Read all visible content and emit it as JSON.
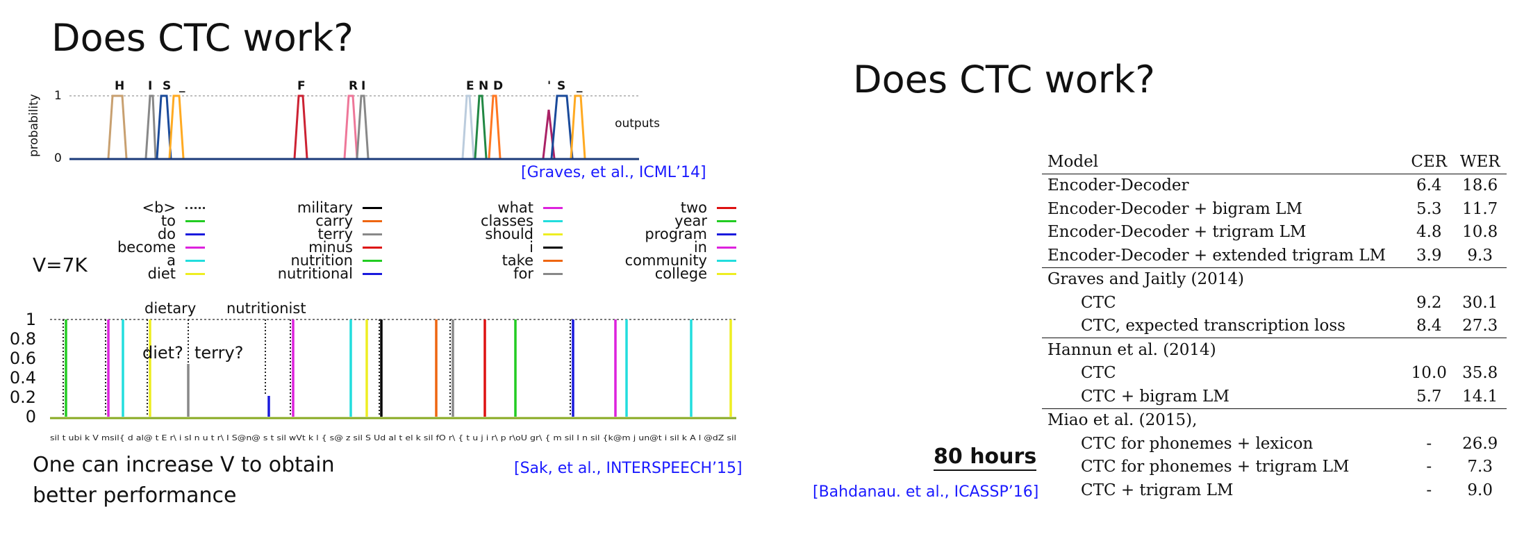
{
  "left": {
    "title": "Does CTC work?",
    "top_chart": {
      "y_axis_label": "probability",
      "y_ticks": [
        "1",
        "0"
      ],
      "outputs_label": "outputs",
      "letters": [
        "H",
        "I",
        "S",
        "_",
        "F",
        "R",
        "I",
        "E",
        "N",
        "D",
        "'",
        "S",
        "_"
      ],
      "citation": "[Graves, et al., ICML’14]"
    },
    "legend_columns": [
      [
        {
          "label": "<b>",
          "color": "#444444",
          "dotted": true
        },
        {
          "label": "to",
          "color": "#22cc22"
        },
        {
          "label": "do",
          "color": "#1a1add"
        },
        {
          "label": "become",
          "color": "#dd22dd"
        },
        {
          "label": "a",
          "color": "#22dddd"
        },
        {
          "label": "diet",
          "color": "#eeee22"
        }
      ],
      [
        {
          "label": "military",
          "color": "#000000"
        },
        {
          "label": "carry",
          "color": "#ee6611"
        },
        {
          "label": "terry",
          "color": "#888888"
        },
        {
          "label": "minus",
          "color": "#dd1111"
        },
        {
          "label": "nutrition",
          "color": "#22cc22"
        },
        {
          "label": "nutritional",
          "color": "#1a1add"
        }
      ],
      [
        {
          "label": "what",
          "color": "#dd22dd"
        },
        {
          "label": "classes",
          "color": "#22dddd"
        },
        {
          "label": "should",
          "color": "#eeee22"
        },
        {
          "label": "i",
          "color": "#000000"
        },
        {
          "label": "take",
          "color": "#ee6611"
        },
        {
          "label": "for",
          "color": "#888888"
        }
      ],
      [
        {
          "label": "two",
          "color": "#dd1111"
        },
        {
          "label": "year",
          "color": "#22cc22"
        },
        {
          "label": "program",
          "color": "#1a1add"
        },
        {
          "label": "in",
          "color": "#dd22dd"
        },
        {
          "label": "community",
          "color": "#22dddd"
        },
        {
          "label": "college",
          "color": "#eeee22"
        }
      ]
    ],
    "vocab_label": "V=7K",
    "bottom_chart": {
      "annotations": [
        "dietary",
        "nutritionist",
        "diet?",
        "terry?"
      ],
      "y_ticks": [
        "1",
        "0.8",
        "0.6",
        "0.4",
        "0.2",
        "0"
      ],
      "phoneme_string": "sil t ubi k V msil{ d al@ t E r\\ i sI n u t r\\ I S@n@ s t sil wVt k l { s@ z sil S Ud al t el k sil fO r\\ { t u j i r\\ p r\\oU gr\\ { m sil I n sil {k@m j un@t i sil k A l @dZ sil",
      "citation": "[Sak, et al., INTERSPEECH’15]"
    },
    "note_line1": "One can increase V to obtain",
    "note_line2": "better performance"
  },
  "right": {
    "title": "Does CTC work?",
    "hours_label": "80 hours",
    "citation": "[Bahdanau. et al., ICASSP’16]",
    "table": {
      "headers": [
        "Model",
        "CER",
        "WER"
      ],
      "rows": [
        {
          "model": "Encoder-Decoder",
          "cer": "6.4",
          "wer": "18.6",
          "indent": false,
          "group_start": false
        },
        {
          "model": "Encoder-Decoder + bigram LM",
          "cer": "5.3",
          "wer": "11.7",
          "indent": false,
          "group_start": false
        },
        {
          "model": "Encoder-Decoder + trigram LM",
          "cer": "4.8",
          "wer": "10.8",
          "indent": false,
          "group_start": false
        },
        {
          "model": "Encoder-Decoder + extended trigram LM",
          "cer": "3.9",
          "wer": "9.3",
          "indent": false,
          "group_start": false
        },
        {
          "model": "Graves and Jaitly (2014)",
          "cer": "",
          "wer": "",
          "indent": false,
          "group_start": true
        },
        {
          "model": "CTC",
          "cer": "9.2",
          "wer": "30.1",
          "indent": true,
          "group_start": false
        },
        {
          "model": "CTC, expected transcription loss",
          "cer": "8.4",
          "wer": "27.3",
          "indent": true,
          "group_start": false
        },
        {
          "model": "Hannun et al. (2014)",
          "cer": "",
          "wer": "",
          "indent": false,
          "group_start": true
        },
        {
          "model": "CTC",
          "cer": "10.0",
          "wer": "35.8",
          "indent": true,
          "group_start": false
        },
        {
          "model": "CTC + bigram LM",
          "cer": "5.7",
          "wer": "14.1",
          "indent": true,
          "group_start": false
        },
        {
          "model": "Miao et al. (2015),",
          "cer": "",
          "wer": "",
          "indent": false,
          "group_start": true
        },
        {
          "model": "CTC for phonemes + lexicon",
          "cer": "-",
          "wer": "26.9",
          "indent": true,
          "group_start": false
        },
        {
          "model": "CTC for phonemes + trigram LM",
          "cer": "-",
          "wer": "7.3",
          "indent": true,
          "group_start": false
        },
        {
          "model": "CTC + trigram LM",
          "cer": "-",
          "wer": "9.0",
          "indent": true,
          "group_start": false
        }
      ]
    }
  }
}
